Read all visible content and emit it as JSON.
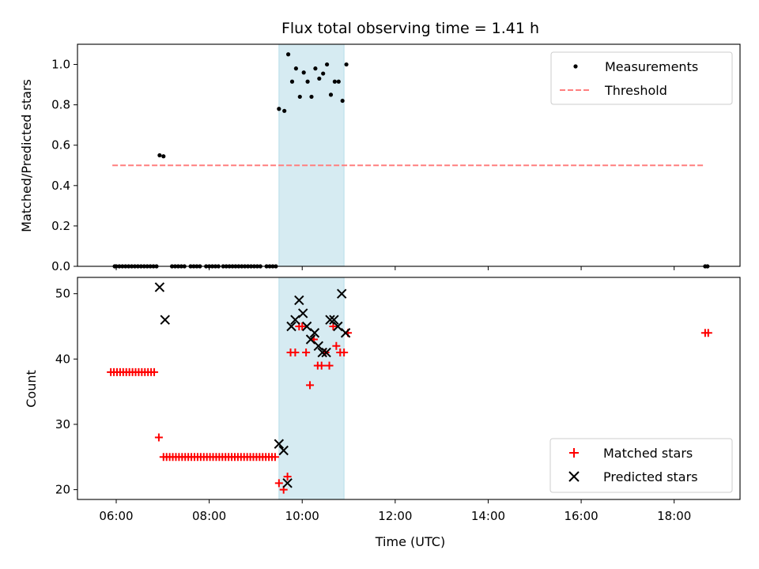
{
  "chart_data": [
    {
      "type": "scatter",
      "title": "Flux total observing time = 1.41 h",
      "xlabel": "",
      "ylabel": "Matched/Predicted stars",
      "xlim": [
        "05:10",
        "19:25"
      ],
      "ylim": [
        0.0,
        1.1
      ],
      "yticks": [
        0.0,
        0.2,
        0.4,
        0.6,
        0.8,
        1.0
      ],
      "ytick_labels": [
        "0.0",
        "0.2",
        "0.4",
        "0.6",
        "0.8",
        "1.0"
      ],
      "shaded_span": {
        "x_start": "09:30",
        "x_end": "10:54",
        "color": "#add8e6"
      },
      "legend": {
        "placement": "upper right",
        "entries": [
          {
            "label": "Measurements",
            "marker": "dot",
            "color": "#000000"
          },
          {
            "label": "Threshold",
            "marker": "dashed-line",
            "color": "#ff7f7f"
          }
        ]
      },
      "series": [
        {
          "name": "Measurements",
          "marker": "dot",
          "color": "#000000",
          "points": [
            [
              "05:58",
              0
            ],
            [
              "06:00",
              0
            ],
            [
              "06:04",
              0
            ],
            [
              "06:08",
              0
            ],
            [
              "06:12",
              0
            ],
            [
              "06:16",
              0
            ],
            [
              "06:20",
              0
            ],
            [
              "06:24",
              0
            ],
            [
              "06:28",
              0
            ],
            [
              "06:32",
              0
            ],
            [
              "06:36",
              0
            ],
            [
              "06:40",
              0
            ],
            [
              "06:44",
              0
            ],
            [
              "06:48",
              0
            ],
            [
              "06:52",
              0
            ],
            [
              "06:56",
              0.55
            ],
            [
              "07:01",
              0.545
            ],
            [
              "07:12",
              0
            ],
            [
              "07:16",
              0
            ],
            [
              "07:20",
              0
            ],
            [
              "07:24",
              0
            ],
            [
              "07:28",
              0
            ],
            [
              "07:36",
              0
            ],
            [
              "07:40",
              0
            ],
            [
              "07:44",
              0
            ],
            [
              "07:48",
              0
            ],
            [
              "07:56",
              0
            ],
            [
              "08:00",
              0
            ],
            [
              "08:04",
              0
            ],
            [
              "08:08",
              0
            ],
            [
              "08:12",
              0
            ],
            [
              "08:18",
              0
            ],
            [
              "08:22",
              0
            ],
            [
              "08:26",
              0
            ],
            [
              "08:30",
              0
            ],
            [
              "08:34",
              0
            ],
            [
              "08:38",
              0
            ],
            [
              "08:42",
              0
            ],
            [
              "08:46",
              0
            ],
            [
              "08:50",
              0
            ],
            [
              "08:54",
              0
            ],
            [
              "08:58",
              0
            ],
            [
              "09:02",
              0
            ],
            [
              "09:06",
              0
            ],
            [
              "09:14",
              0
            ],
            [
              "09:18",
              0
            ],
            [
              "09:22",
              0
            ],
            [
              "09:26",
              0
            ],
            [
              "09:30",
              0.78
            ],
            [
              "09:37",
              0.77
            ],
            [
              "09:42",
              1.05
            ],
            [
              "09:47",
              0.915
            ],
            [
              "09:52",
              0.98
            ],
            [
              "09:57",
              0.84
            ],
            [
              "10:02",
              0.96
            ],
            [
              "10:07",
              0.915
            ],
            [
              "10:12",
              0.84
            ],
            [
              "10:17",
              0.98
            ],
            [
              "10:22",
              0.93
            ],
            [
              "10:27",
              0.955
            ],
            [
              "10:32",
              1.0
            ],
            [
              "10:37",
              0.85
            ],
            [
              "10:42",
              0.915
            ],
            [
              "10:47",
              0.915
            ],
            [
              "10:52",
              0.82
            ],
            [
              "10:57",
              1.0
            ],
            [
              "18:40",
              0
            ],
            [
              "18:43",
              0
            ]
          ]
        },
        {
          "name": "Threshold",
          "line_style": "dashed",
          "color": "#ff7f7f",
          "points": [
            [
              "05:55",
              0.5
            ],
            [
              "18:40",
              0.5
            ]
          ]
        }
      ]
    },
    {
      "type": "scatter",
      "title": "",
      "xlabel": "Time (UTC)",
      "ylabel": "Count",
      "xlim": [
        "05:10",
        "19:25"
      ],
      "ylim": [
        18.5,
        52.5
      ],
      "yticks": [
        20,
        30,
        40,
        50
      ],
      "ytick_labels": [
        "20",
        "30",
        "40",
        "50"
      ],
      "xticks": [
        "06:00",
        "08:00",
        "10:00",
        "12:00",
        "14:00",
        "16:00",
        "18:00"
      ],
      "xtick_labels": [
        "06:00",
        "08:00",
        "10:00",
        "12:00",
        "14:00",
        "16:00",
        "18:00"
      ],
      "shaded_span": {
        "x_start": "09:30",
        "x_end": "10:54",
        "color": "#add8e6"
      },
      "legend": {
        "placement": "lower right",
        "entries": [
          {
            "label": "Matched stars",
            "marker": "plus",
            "color": "#ff0000"
          },
          {
            "label": "Predicted stars",
            "marker": "x",
            "color": "#000000"
          }
        ]
      },
      "series": [
        {
          "name": "Matched stars",
          "marker": "plus",
          "color": "#ff0000",
          "points": [
            [
              "05:53",
              38
            ],
            [
              "05:57",
              38
            ],
            [
              "06:01",
              38
            ],
            [
              "06:05",
              38
            ],
            [
              "06:09",
              38
            ],
            [
              "06:13",
              38
            ],
            [
              "06:17",
              38
            ],
            [
              "06:21",
              38
            ],
            [
              "06:25",
              38
            ],
            [
              "06:29",
              38
            ],
            [
              "06:33",
              38
            ],
            [
              "06:37",
              38
            ],
            [
              "06:41",
              38
            ],
            [
              "06:45",
              38
            ],
            [
              "06:49",
              38
            ],
            [
              "06:55",
              28
            ],
            [
              "07:01",
              25
            ],
            [
              "07:05",
              25
            ],
            [
              "07:09",
              25
            ],
            [
              "07:13",
              25
            ],
            [
              "07:17",
              25
            ],
            [
              "07:21",
              25
            ],
            [
              "07:25",
              25
            ],
            [
              "07:29",
              25
            ],
            [
              "07:33",
              25
            ],
            [
              "07:37",
              25
            ],
            [
              "07:41",
              25
            ],
            [
              "07:45",
              25
            ],
            [
              "07:49",
              25
            ],
            [
              "07:53",
              25
            ],
            [
              "07:57",
              25
            ],
            [
              "08:01",
              25
            ],
            [
              "08:05",
              25
            ],
            [
              "08:09",
              25
            ],
            [
              "08:13",
              25
            ],
            [
              "08:17",
              25
            ],
            [
              "08:21",
              25
            ],
            [
              "08:25",
              25
            ],
            [
              "08:29",
              25
            ],
            [
              "08:33",
              25
            ],
            [
              "08:37",
              25
            ],
            [
              "08:41",
              25
            ],
            [
              "08:45",
              25
            ],
            [
              "08:49",
              25
            ],
            [
              "08:53",
              25
            ],
            [
              "08:57",
              25
            ],
            [
              "09:01",
              25
            ],
            [
              "09:05",
              25
            ],
            [
              "09:09",
              25
            ],
            [
              "09:13",
              25
            ],
            [
              "09:17",
              25
            ],
            [
              "09:21",
              25
            ],
            [
              "09:25",
              25
            ],
            [
              "09:30",
              21
            ],
            [
              "09:36",
              20
            ],
            [
              "09:41",
              22
            ],
            [
              "09:45",
              41
            ],
            [
              "09:51",
              41
            ],
            [
              "09:56",
              45
            ],
            [
              "10:00",
              45
            ],
            [
              "10:05",
              41
            ],
            [
              "10:10",
              36
            ],
            [
              "10:15",
              43
            ],
            [
              "10:20",
              39
            ],
            [
              "10:25",
              39
            ],
            [
              "10:30",
              41
            ],
            [
              "10:35",
              39
            ],
            [
              "10:40",
              45
            ],
            [
              "10:44",
              42
            ],
            [
              "10:49",
              41
            ],
            [
              "10:54",
              41
            ],
            [
              "10:59",
              44
            ],
            [
              "18:40",
              44
            ],
            [
              "18:44",
              44
            ]
          ]
        },
        {
          "name": "Predicted stars",
          "marker": "x",
          "color": "#000000",
          "points": [
            [
              "06:56",
              51
            ],
            [
              "07:03",
              46
            ],
            [
              "09:30",
              27
            ],
            [
              "09:36",
              26
            ],
            [
              "09:41",
              21
            ],
            [
              "09:46",
              45
            ],
            [
              "09:51",
              46
            ],
            [
              "09:56",
              49
            ],
            [
              "10:01",
              47
            ],
            [
              "10:06",
              45
            ],
            [
              "10:11",
              43
            ],
            [
              "10:16",
              44
            ],
            [
              "10:21",
              42
            ],
            [
              "10:26",
              41
            ],
            [
              "10:31",
              41
            ],
            [
              "10:36",
              46
            ],
            [
              "10:41",
              46
            ],
            [
              "10:46",
              45
            ],
            [
              "10:51",
              50
            ],
            [
              "10:56",
              44
            ]
          ]
        }
      ]
    }
  ]
}
